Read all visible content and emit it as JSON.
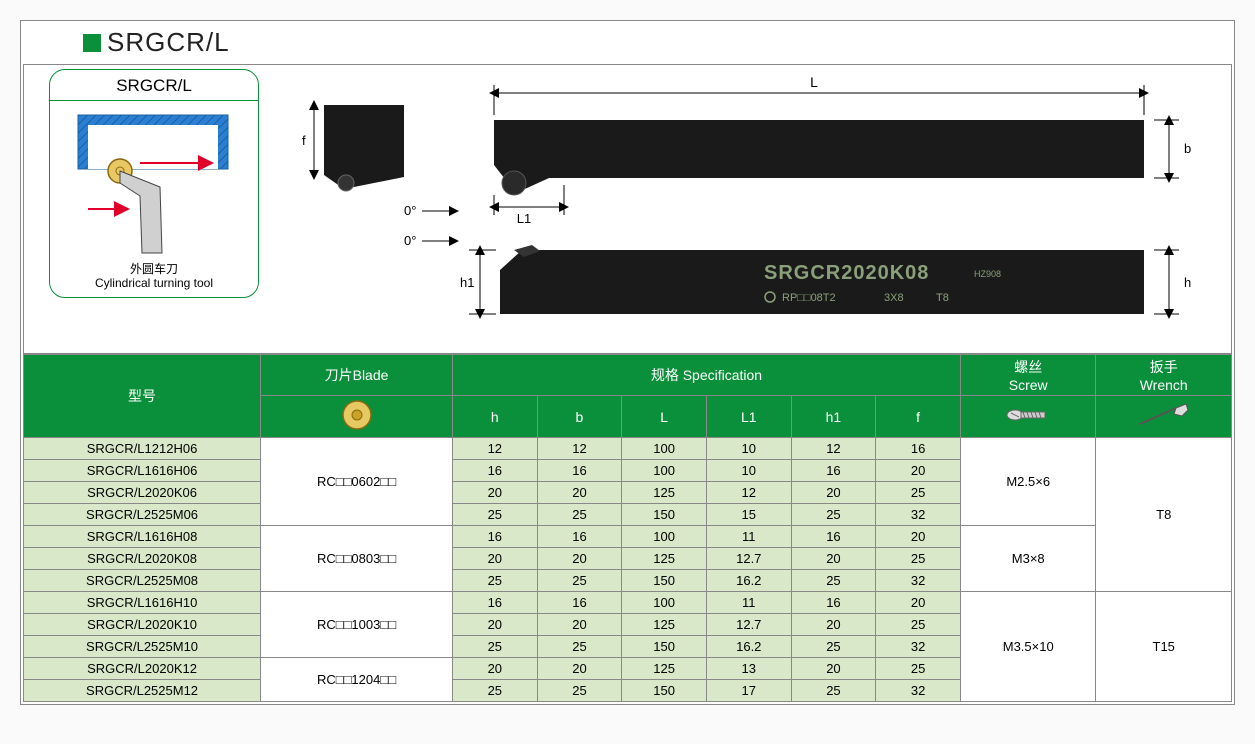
{
  "title": "SRGCR/L",
  "diagram_card": {
    "title": "SRGCR/L",
    "caption_cn": "外圆车刀",
    "caption_en": "Cylindrical turning tool"
  },
  "tool_drawing": {
    "dim_labels": {
      "L": "L",
      "L1": "L1",
      "b": "b",
      "h": "h",
      "h1": "h1",
      "f": "f"
    },
    "angle_top": "0°",
    "angle_bottom": "0°",
    "engraving_model": "SRGCR2020K08",
    "engraving_sub1": "HZ908",
    "engraving_insert": "RP□□08T2",
    "engraving_screw": "3X8",
    "engraving_wrench": "T8"
  },
  "headers": {
    "model": "型号",
    "blade": "刀片Blade",
    "spec": "规格 Specification",
    "spec_cols": [
      "h",
      "b",
      "L",
      "L1",
      "h1",
      "f"
    ],
    "screw_cn": "螺丝",
    "screw_en": "Screw",
    "wrench_cn": "扳手",
    "wrench_en": "Wrench"
  },
  "groups": [
    {
      "blade": "RC□□0602□□",
      "screw": "M2.5×6",
      "wrench": "T8",
      "wrench_span": 7,
      "rows": [
        {
          "model": "SRGCR/L1212H06",
          "dims": [
            "12",
            "12",
            "100",
            "10",
            "12",
            "16"
          ]
        },
        {
          "model": "SRGCR/L1616H06",
          "dims": [
            "16",
            "16",
            "100",
            "10",
            "16",
            "20"
          ]
        },
        {
          "model": "SRGCR/L2020K06",
          "dims": [
            "20",
            "20",
            "125",
            "12",
            "20",
            "25"
          ]
        },
        {
          "model": "SRGCR/L2525M06",
          "dims": [
            "25",
            "25",
            "150",
            "15",
            "25",
            "32"
          ]
        }
      ]
    },
    {
      "blade": "RC□□0803□□",
      "screw": "M3×8",
      "rows": [
        {
          "model": "SRGCR/L1616H08",
          "dims": [
            "16",
            "16",
            "100",
            "11",
            "16",
            "20"
          ]
        },
        {
          "model": "SRGCR/L2020K08",
          "dims": [
            "20",
            "20",
            "125",
            "12.7",
            "20",
            "25"
          ]
        },
        {
          "model": "SRGCR/L2525M08",
          "dims": [
            "25",
            "25",
            "150",
            "16.2",
            "25",
            "32"
          ]
        }
      ]
    },
    {
      "blade": "RC□□1003□□",
      "screw": "M3.5×10",
      "screw_span": 5,
      "wrench": "T15",
      "wrench_span": 5,
      "rows": [
        {
          "model": "SRGCR/L1616H10",
          "dims": [
            "16",
            "16",
            "100",
            "11",
            "16",
            "20"
          ]
        },
        {
          "model": "SRGCR/L2020K10",
          "dims": [
            "20",
            "20",
            "125",
            "12.7",
            "20",
            "25"
          ]
        },
        {
          "model": "SRGCR/L2525M10",
          "dims": [
            "25",
            "25",
            "150",
            "16.2",
            "25",
            "32"
          ]
        }
      ]
    },
    {
      "blade": "RC□□1204□□",
      "rows": [
        {
          "model": "SRGCR/L2020K12",
          "dims": [
            "20",
            "20",
            "125",
            "13",
            "20",
            "25"
          ]
        },
        {
          "model": "SRGCR/L2525M12",
          "dims": [
            "25",
            "25",
            "150",
            "17",
            "25",
            "32"
          ]
        }
      ]
    }
  ],
  "colors": {
    "brand_green": "#0a8f3a",
    "pale_green": "#d8e8c8",
    "workpiece_blue": "#2a7fd4",
    "arrow_red": "#e2002a",
    "tool_black": "#1a1a1a",
    "tool_engraving": "#8aa07a",
    "border": "#888888",
    "insert_gold": "#c9a227",
    "insert_gold_light": "#e7c862"
  }
}
